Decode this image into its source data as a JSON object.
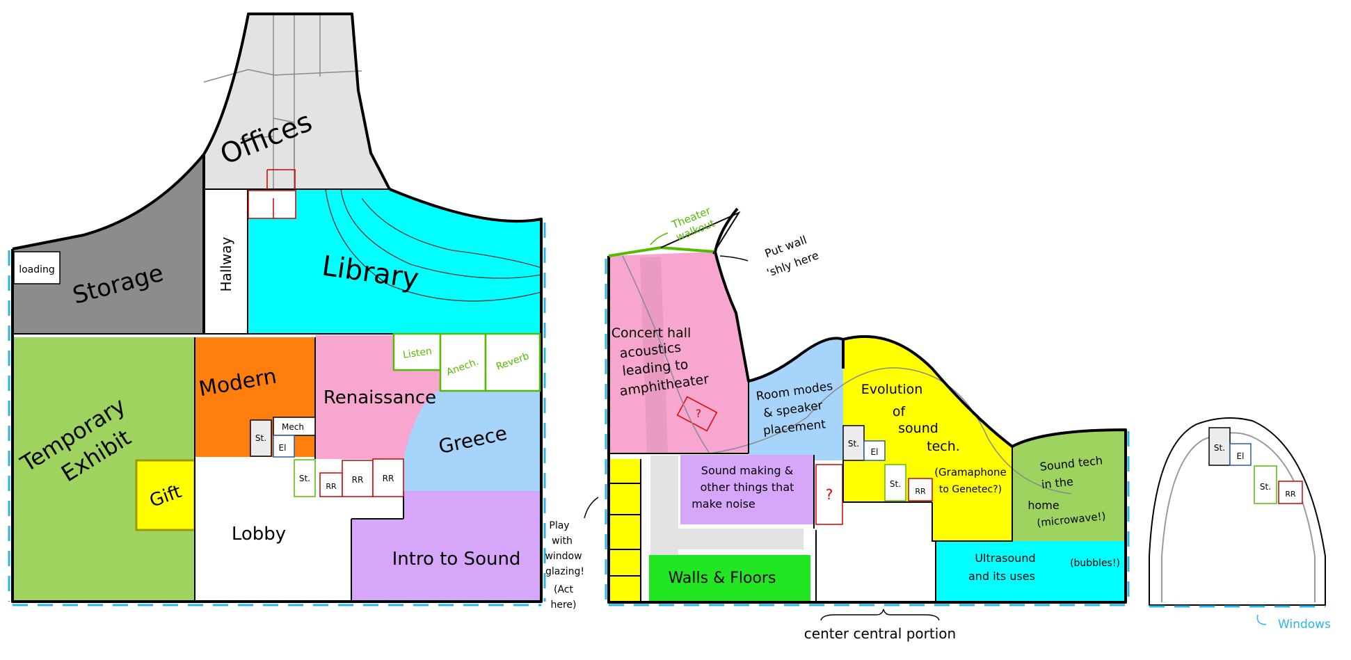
{
  "rooms": {
    "offices": "Offices",
    "storage": "Storage",
    "loading": "loading",
    "hallway": "Hallway",
    "library": "Library",
    "temporary_line1": "Temporary",
    "temporary_line2": "Exhibit",
    "gift": "Gift",
    "modern": "Modern",
    "renaissance": "Renaissance",
    "greece": "Greece",
    "lobby": "Lobby",
    "intro": "Intro to Sound",
    "listen": "Listen",
    "anech": "Anech.",
    "reverb": "Reverb",
    "mech": "Mech",
    "st": "St.",
    "el": "El",
    "rr": "RR",
    "concert_l1": "Concert hall",
    "concert_l2": "acoustics",
    "concert_l3": "leading to",
    "concert_l4": "amphitheater",
    "question": "?",
    "roommodes_l1": "Room modes",
    "roommodes_l2": "& speaker",
    "roommodes_l3": "placement",
    "evolution_l1": "Evolution",
    "evolution_l2": "of",
    "evolution_l3": "sound",
    "evolution_l4": "tech.",
    "grama_l1": "(Gramaphone",
    "grama_l2": "to Genetec?)",
    "soundmaking_l1": "Sound making &",
    "soundmaking_l2": "other things that",
    "soundmaking_l3": "make noise",
    "soundhome_l1": "Sound tech",
    "soundhome_l2": "in the",
    "soundhome_l3": "home",
    "soundhome_l4": "(microwave!)",
    "ultrasound_l1": "Ultrasound",
    "ultrasound_l2": "and its uses",
    "bubbles": "(bubbles!)",
    "walls_floors": "Walls & Floors"
  },
  "annotations": {
    "theater_l1": "Theater",
    "theater_l2": "walkout",
    "putwall_l1": "Put wall",
    "putwall_l2": "'shly here",
    "play_l1": "Play",
    "play_l2": "with",
    "play_l3": "window",
    "play_l4": "glazing!",
    "play_l5": "(Act",
    "play_l6": "here)",
    "center": "center central portion",
    "windows": "Windows"
  },
  "colors": {
    "offices": "#e3e3e3",
    "storage": "#8c8c8c",
    "library": "#00ffff",
    "temporary": "#9dd35e",
    "gift": "#ffff00",
    "modern": "#ff7f0e",
    "renaissance": "#f7a6cf",
    "greece": "#a6d4fa",
    "intro": "#d6a6fb",
    "concert": "#f7a6cf",
    "room_modes": "#a6d4fa",
    "evolution": "#ffff00",
    "sound_making": "#d6a6fb",
    "sound_home": "#9dd35e",
    "ultrasound": "#00ffff",
    "walls_floors": "#22e622",
    "window_line": "#29b6e8",
    "theater_note": "#55bb00",
    "red_marker": "#e00000",
    "green_box": "#55bb00",
    "blue_box": "#2a5aaa"
  }
}
